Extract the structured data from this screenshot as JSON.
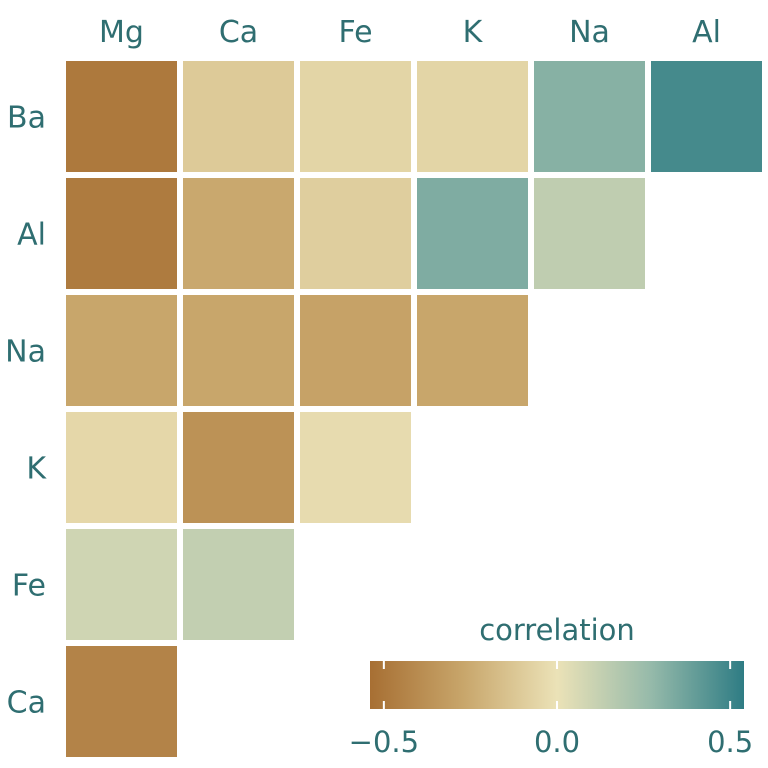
{
  "chart_data": {
    "type": "heatmap",
    "columns": [
      "Mg",
      "Ca",
      "Fe",
      "K",
      "Na",
      "Al"
    ],
    "rows": [
      "Ba",
      "Al",
      "Na",
      "K",
      "Fe",
      "Ca"
    ],
    "cells": [
      [
        -0.49,
        -0.11,
        -0.06,
        -0.06,
        0.31,
        0.48
      ],
      [
        -0.48,
        -0.26,
        -0.09,
        0.33,
        0.14,
        null
      ],
      [
        -0.27,
        -0.27,
        -0.29,
        -0.27,
        null,
        null
      ],
      [
        -0.05,
        -0.37,
        -0.03,
        null,
        null,
        null
      ],
      [
        0.09,
        0.13,
        null,
        null,
        null,
        null
      ],
      [
        -0.44,
        null,
        null,
        null,
        null,
        null
      ]
    ],
    "legend": {
      "title": "correlation",
      "ticks": [
        "−0.5",
        "0.0",
        "0.5"
      ],
      "tick_values": [
        -0.5,
        0.0,
        0.5
      ],
      "range": [
        -0.54,
        0.54
      ],
      "colors": {
        "low": "#a76f33",
        "mid": "#ebe2b7",
        "high": "#2e7c84"
      }
    }
  }
}
